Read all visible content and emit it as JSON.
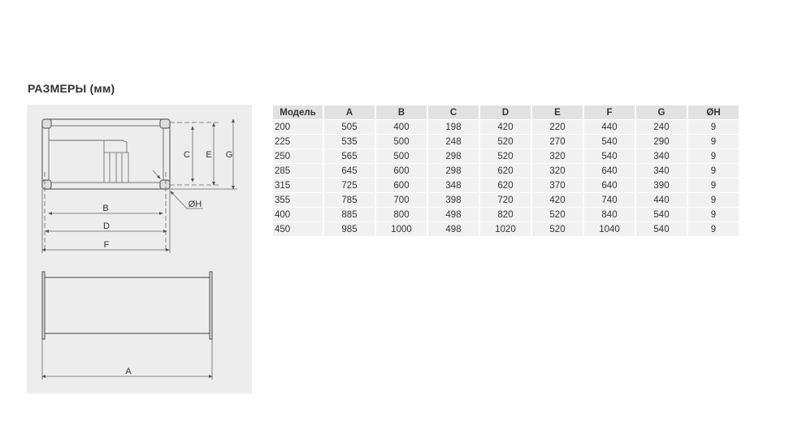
{
  "title": "РАЗМЕРЫ (мм)",
  "diagram": {
    "top_view_labels": {
      "B": "B",
      "C": "C",
      "D": "D",
      "E": "E",
      "F": "F",
      "G": "G",
      "H": "ØH"
    },
    "side_view_labels": {
      "A": "A"
    }
  },
  "table": {
    "headers": [
      "Модель",
      "A",
      "B",
      "C",
      "D",
      "E",
      "F",
      "G",
      "ØH"
    ],
    "rows": [
      [
        "200",
        "505",
        "400",
        "198",
        "420",
        "220",
        "440",
        "240",
        "9"
      ],
      [
        "225",
        "535",
        "500",
        "248",
        "520",
        "270",
        "540",
        "290",
        "9"
      ],
      [
        "250",
        "565",
        "500",
        "298",
        "520",
        "320",
        "540",
        "340",
        "9"
      ],
      [
        "285",
        "645",
        "600",
        "298",
        "620",
        "320",
        "640",
        "340",
        "9"
      ],
      [
        "315",
        "725",
        "600",
        "348",
        "620",
        "370",
        "640",
        "390",
        "9"
      ],
      [
        "355",
        "785",
        "700",
        "398",
        "720",
        "420",
        "740",
        "440",
        "9"
      ],
      [
        "400",
        "885",
        "800",
        "498",
        "820",
        "520",
        "840",
        "540",
        "9"
      ],
      [
        "450",
        "985",
        "1000",
        "498",
        "1020",
        "520",
        "1040",
        "540",
        "9"
      ]
    ]
  }
}
